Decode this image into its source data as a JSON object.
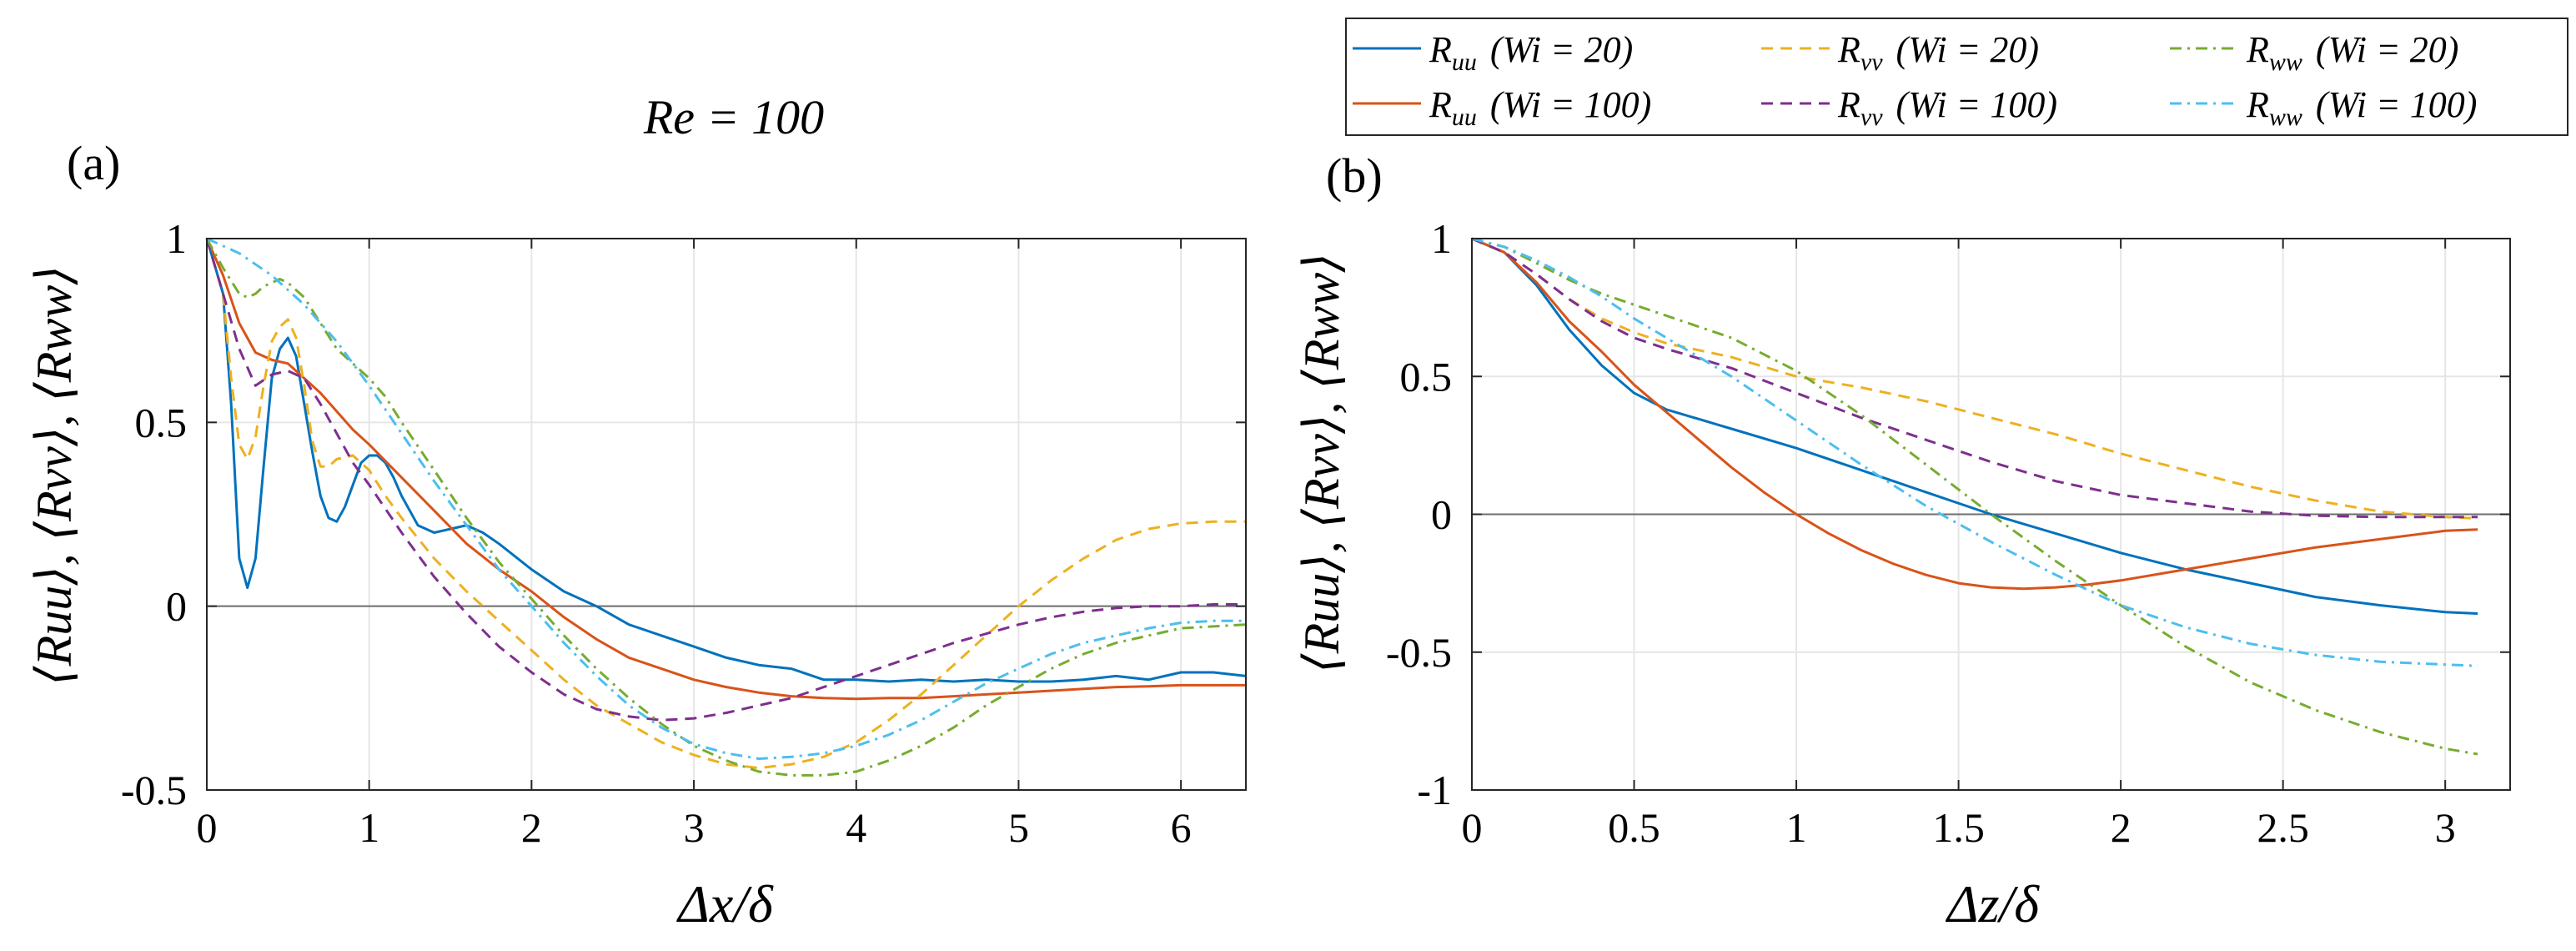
{
  "figure": {
    "title": "Re = 100",
    "series_styles": [
      {
        "key": "uu_wi20",
        "color": "#0072BD",
        "dash": "solid"
      },
      {
        "key": "uu_wi100",
        "color": "#D95319",
        "dash": "solid"
      },
      {
        "key": "vv_wi20",
        "color": "#EDB120",
        "dash": "dashed"
      },
      {
        "key": "vv_wi100",
        "color": "#7E2F8E",
        "dash": "dashed"
      },
      {
        "key": "ww_wi20",
        "color": "#77AC30",
        "dash": "dashdot"
      },
      {
        "key": "ww_wi100",
        "color": "#4DBEEE",
        "dash": "dashdot"
      }
    ]
  },
  "legend": {
    "position": "top-right",
    "entries": [
      {
        "series": "uu_wi20",
        "sym": "R",
        "sub": "uu",
        "label": "(Wi = 20)"
      },
      {
        "series": "vv_wi20",
        "sym": "R",
        "sub": "vv",
        "label": "(Wi = 20)"
      },
      {
        "series": "ww_wi20",
        "sym": "R",
        "sub": "ww",
        "label": "(Wi = 20)"
      },
      {
        "series": "uu_wi100",
        "sym": "R",
        "sub": "uu",
        "label": "(Wi = 100)"
      },
      {
        "series": "vv_wi100",
        "sym": "R",
        "sub": "vv",
        "label": "(Wi = 100)"
      },
      {
        "series": "ww_wi100",
        "sym": "R",
        "sub": "ww",
        "label": "(Wi = 100)"
      }
    ]
  },
  "chart_data": [
    {
      "type": "line",
      "panel_label": "(a)",
      "xlabel": "Δx/δ",
      "ylabel": "⟨Ruu⟩, ⟨Rvv⟩, ⟨Rww⟩",
      "xlim": [
        0,
        6.4
      ],
      "ylim": [
        -0.5,
        1
      ],
      "xticks": [
        0,
        1,
        2,
        3,
        4,
        5,
        6
      ],
      "xticklabels": [
        "0",
        "1",
        "2",
        "3",
        "4",
        "5",
        "6"
      ],
      "yticks": [
        -0.5,
        0,
        0.5,
        1
      ],
      "yticklabels": [
        "-0.5",
        "0",
        "0.5",
        "1"
      ],
      "grid": true,
      "series": [
        {
          "name": "Ruu (Wi = 20)",
          "key": "uu_wi20",
          "x": [
            0,
            0.1,
            0.15,
            0.2,
            0.25,
            0.3,
            0.35,
            0.4,
            0.45,
            0.5,
            0.55,
            0.6,
            0.65,
            0.7,
            0.75,
            0.8,
            0.85,
            0.9,
            0.95,
            1.0,
            1.05,
            1.1,
            1.15,
            1.2,
            1.3,
            1.4,
            1.5,
            1.6,
            1.7,
            1.8,
            2.0,
            2.2,
            2.4,
            2.6,
            2.8,
            3.0,
            3.2,
            3.4,
            3.6,
            3.8,
            4.0,
            4.2,
            4.4,
            4.6,
            4.8,
            5.0,
            5.2,
            5.4,
            5.6,
            5.8,
            6.0,
            6.2,
            6.4
          ],
          "y": [
            1.0,
            0.85,
            0.55,
            0.13,
            0.05,
            0.13,
            0.38,
            0.62,
            0.7,
            0.73,
            0.68,
            0.55,
            0.42,
            0.3,
            0.24,
            0.23,
            0.27,
            0.33,
            0.39,
            0.41,
            0.41,
            0.39,
            0.35,
            0.3,
            0.22,
            0.2,
            0.21,
            0.22,
            0.2,
            0.17,
            0.1,
            0.04,
            0.0,
            -0.05,
            -0.08,
            -0.11,
            -0.14,
            -0.16,
            -0.17,
            -0.2,
            -0.2,
            -0.205,
            -0.2,
            -0.205,
            -0.2,
            -0.205,
            -0.205,
            -0.2,
            -0.19,
            -0.2,
            -0.18,
            -0.18,
            -0.19
          ]
        },
        {
          "name": "Ruu (Wi = 100)",
          "key": "uu_wi100",
          "x": [
            0,
            0.1,
            0.2,
            0.3,
            0.4,
            0.5,
            0.6,
            0.7,
            0.8,
            0.9,
            1.0,
            1.2,
            1.4,
            1.6,
            1.8,
            2.0,
            2.2,
            2.4,
            2.6,
            2.8,
            3.0,
            3.2,
            3.4,
            3.6,
            3.8,
            4.0,
            4.2,
            4.4,
            4.6,
            4.8,
            5.0,
            5.2,
            5.4,
            5.6,
            5.8,
            6.0,
            6.2,
            6.4
          ],
          "y": [
            1.0,
            0.9,
            0.77,
            0.69,
            0.67,
            0.66,
            0.62,
            0.58,
            0.53,
            0.48,
            0.44,
            0.35,
            0.26,
            0.17,
            0.1,
            0.04,
            -0.03,
            -0.09,
            -0.14,
            -0.17,
            -0.2,
            -0.22,
            -0.235,
            -0.245,
            -0.25,
            -0.252,
            -0.25,
            -0.25,
            -0.245,
            -0.24,
            -0.235,
            -0.23,
            -0.225,
            -0.22,
            -0.218,
            -0.215,
            -0.215,
            -0.215
          ]
        },
        {
          "name": "Rvv (Wi = 20)",
          "key": "vv_wi20",
          "x": [
            0,
            0.1,
            0.15,
            0.2,
            0.25,
            0.3,
            0.35,
            0.4,
            0.45,
            0.5,
            0.55,
            0.6,
            0.65,
            0.7,
            0.75,
            0.8,
            0.9,
            1.0,
            1.1,
            1.2,
            1.4,
            1.6,
            1.8,
            2.0,
            2.2,
            2.4,
            2.6,
            2.8,
            3.0,
            3.2,
            3.4,
            3.6,
            3.8,
            4.0,
            4.2,
            4.4,
            4.6,
            4.8,
            5.0,
            5.2,
            5.4,
            5.6,
            5.8,
            6.0,
            6.2,
            6.4
          ],
          "y": [
            1.0,
            0.85,
            0.62,
            0.44,
            0.4,
            0.46,
            0.6,
            0.72,
            0.76,
            0.78,
            0.73,
            0.6,
            0.45,
            0.38,
            0.38,
            0.4,
            0.41,
            0.37,
            0.3,
            0.24,
            0.13,
            0.04,
            -0.04,
            -0.12,
            -0.2,
            -0.27,
            -0.32,
            -0.37,
            -0.405,
            -0.43,
            -0.44,
            -0.43,
            -0.41,
            -0.37,
            -0.31,
            -0.24,
            -0.16,
            -0.08,
            0.0,
            0.07,
            0.13,
            0.18,
            0.21,
            0.225,
            0.23,
            0.23
          ]
        },
        {
          "name": "Rvv (Wi = 100)",
          "key": "vv_wi100",
          "x": [
            0,
            0.1,
            0.2,
            0.3,
            0.4,
            0.5,
            0.6,
            0.7,
            0.8,
            0.9,
            1.0,
            1.2,
            1.4,
            1.6,
            1.8,
            2.0,
            2.2,
            2.4,
            2.6,
            2.8,
            3.0,
            3.2,
            3.4,
            3.6,
            3.8,
            4.0,
            4.2,
            4.4,
            4.6,
            4.8,
            5.0,
            5.2,
            5.4,
            5.6,
            5.8,
            6.0,
            6.2,
            6.4
          ],
          "y": [
            1.0,
            0.85,
            0.7,
            0.6,
            0.63,
            0.64,
            0.62,
            0.55,
            0.47,
            0.39,
            0.33,
            0.2,
            0.08,
            -0.02,
            -0.11,
            -0.18,
            -0.24,
            -0.28,
            -0.3,
            -0.31,
            -0.305,
            -0.29,
            -0.27,
            -0.25,
            -0.22,
            -0.19,
            -0.16,
            -0.13,
            -0.1,
            -0.075,
            -0.05,
            -0.03,
            -0.015,
            -0.005,
            0.0,
            0.0,
            0.005,
            0.005
          ]
        },
        {
          "name": "Rww (Wi = 20)",
          "key": "ww_wi20",
          "x": [
            0,
            0.1,
            0.2,
            0.25,
            0.3,
            0.35,
            0.4,
            0.45,
            0.5,
            0.55,
            0.6,
            0.7,
            0.8,
            0.9,
            1.0,
            1.1,
            1.2,
            1.4,
            1.6,
            1.8,
            2.0,
            2.2,
            2.4,
            2.6,
            2.8,
            3.0,
            3.2,
            3.4,
            3.6,
            3.8,
            4.0,
            4.2,
            4.4,
            4.6,
            4.8,
            5.0,
            5.2,
            5.4,
            5.6,
            5.8,
            6.0,
            6.2,
            6.4
          ],
          "y": [
            1.0,
            0.92,
            0.85,
            0.84,
            0.85,
            0.87,
            0.88,
            0.89,
            0.88,
            0.86,
            0.84,
            0.77,
            0.7,
            0.66,
            0.62,
            0.57,
            0.5,
            0.37,
            0.24,
            0.12,
            0.02,
            -0.08,
            -0.17,
            -0.25,
            -0.32,
            -0.38,
            -0.42,
            -0.45,
            -0.46,
            -0.46,
            -0.45,
            -0.42,
            -0.38,
            -0.33,
            -0.27,
            -0.22,
            -0.17,
            -0.13,
            -0.1,
            -0.08,
            -0.06,
            -0.055,
            -0.05
          ]
        },
        {
          "name": "Rww (Wi = 100)",
          "key": "ww_wi100",
          "x": [
            0,
            0.2,
            0.4,
            0.6,
            0.8,
            1.0,
            1.2,
            1.4,
            1.6,
            1.8,
            2.0,
            2.2,
            2.4,
            2.6,
            2.8,
            3.0,
            3.2,
            3.4,
            3.6,
            3.8,
            4.0,
            4.2,
            4.4,
            4.6,
            4.8,
            5.0,
            5.2,
            5.4,
            5.6,
            5.8,
            6.0,
            6.2,
            6.4
          ],
          "y": [
            1.0,
            0.96,
            0.9,
            0.82,
            0.72,
            0.6,
            0.47,
            0.34,
            0.22,
            0.1,
            0.0,
            -0.1,
            -0.19,
            -0.27,
            -0.33,
            -0.375,
            -0.4,
            -0.415,
            -0.41,
            -0.4,
            -0.38,
            -0.35,
            -0.31,
            -0.26,
            -0.21,
            -0.17,
            -0.13,
            -0.1,
            -0.08,
            -0.06,
            -0.045,
            -0.04,
            -0.04
          ]
        }
      ]
    },
    {
      "type": "line",
      "panel_label": "(b)",
      "xlabel": "Δz/δ",
      "ylabel": "⟨Ruu⟩, ⟨Rvv⟩, ⟨Rww⟩",
      "xlim": [
        0,
        3.2
      ],
      "ylim": [
        -1,
        1
      ],
      "xticks": [
        0,
        0.5,
        1,
        1.5,
        2,
        2.5,
        3
      ],
      "xticklabels": [
        "0",
        "0.5",
        "1",
        "1.5",
        "2",
        "2.5",
        "3"
      ],
      "yticks": [
        -1,
        -0.5,
        0,
        0.5,
        1
      ],
      "yticklabels": [
        "-1",
        "-0.5",
        "0",
        "0.5",
        "1"
      ],
      "grid": true,
      "series": [
        {
          "name": "Ruu (Wi = 20)",
          "key": "uu_wi20",
          "x": [
            0,
            0.1,
            0.2,
            0.3,
            0.4,
            0.5,
            0.6,
            0.8,
            1.0,
            1.2,
            1.4,
            1.6,
            1.8,
            2.0,
            2.2,
            2.4,
            2.6,
            2.8,
            3.0,
            3.1
          ],
          "y": [
            1.0,
            0.95,
            0.83,
            0.67,
            0.54,
            0.44,
            0.38,
            0.31,
            0.24,
            0.16,
            0.08,
            0.0,
            -0.07,
            -0.14,
            -0.2,
            -0.25,
            -0.3,
            -0.33,
            -0.355,
            -0.36
          ]
        },
        {
          "name": "Ruu (Wi = 100)",
          "key": "uu_wi100",
          "x": [
            0,
            0.1,
            0.2,
            0.3,
            0.4,
            0.5,
            0.6,
            0.7,
            0.8,
            0.9,
            1.0,
            1.1,
            1.2,
            1.3,
            1.4,
            1.5,
            1.6,
            1.7,
            1.8,
            1.9,
            2.0,
            2.2,
            2.4,
            2.6,
            2.8,
            3.0,
            3.1
          ],
          "y": [
            1.0,
            0.95,
            0.84,
            0.7,
            0.59,
            0.47,
            0.37,
            0.27,
            0.17,
            0.08,
            0.0,
            -0.07,
            -0.13,
            -0.18,
            -0.22,
            -0.25,
            -0.265,
            -0.27,
            -0.265,
            -0.255,
            -0.24,
            -0.2,
            -0.16,
            -0.12,
            -0.09,
            -0.06,
            -0.055
          ]
        },
        {
          "name": "Rvv (Wi = 20)",
          "key": "vv_wi20",
          "x": [
            0,
            0.1,
            0.2,
            0.3,
            0.4,
            0.5,
            0.6,
            0.8,
            1.0,
            1.2,
            1.4,
            1.6,
            1.8,
            2.0,
            2.2,
            2.4,
            2.6,
            2.8,
            3.0,
            3.1
          ],
          "y": [
            1.0,
            0.95,
            0.87,
            0.78,
            0.71,
            0.66,
            0.62,
            0.57,
            0.5,
            0.46,
            0.41,
            0.35,
            0.29,
            0.22,
            0.16,
            0.1,
            0.05,
            0.01,
            -0.01,
            -0.015
          ]
        },
        {
          "name": "Rvv (Wi = 100)",
          "key": "vv_wi100",
          "x": [
            0,
            0.1,
            0.2,
            0.3,
            0.4,
            0.5,
            0.6,
            0.8,
            1.0,
            1.2,
            1.4,
            1.6,
            1.8,
            2.0,
            2.2,
            2.4,
            2.6,
            2.8,
            3.0,
            3.1
          ],
          "y": [
            1.0,
            0.95,
            0.87,
            0.78,
            0.7,
            0.64,
            0.6,
            0.53,
            0.44,
            0.35,
            0.27,
            0.19,
            0.12,
            0.07,
            0.04,
            0.01,
            -0.005,
            -0.01,
            -0.01,
            -0.01
          ]
        },
        {
          "name": "Rww (Wi = 20)",
          "key": "ww_wi20",
          "x": [
            0,
            0.1,
            0.2,
            0.3,
            0.4,
            0.5,
            0.6,
            0.8,
            1.0,
            1.2,
            1.4,
            1.6,
            1.8,
            2.0,
            2.2,
            2.4,
            2.6,
            2.8,
            3.0,
            3.1
          ],
          "y": [
            1.0,
            0.97,
            0.91,
            0.85,
            0.8,
            0.76,
            0.72,
            0.64,
            0.52,
            0.36,
            0.18,
            0.0,
            -0.17,
            -0.33,
            -0.48,
            -0.61,
            -0.71,
            -0.79,
            -0.85,
            -0.87
          ]
        },
        {
          "name": "Rww (Wi = 100)",
          "key": "ww_wi100",
          "x": [
            0,
            0.1,
            0.2,
            0.3,
            0.4,
            0.5,
            0.6,
            0.8,
            1.0,
            1.2,
            1.4,
            1.6,
            1.8,
            2.0,
            2.2,
            2.4,
            2.6,
            2.8,
            3.0,
            3.1
          ],
          "y": [
            1.0,
            0.97,
            0.92,
            0.86,
            0.79,
            0.71,
            0.64,
            0.5,
            0.34,
            0.18,
            0.03,
            -0.1,
            -0.22,
            -0.33,
            -0.41,
            -0.47,
            -0.51,
            -0.535,
            -0.545,
            -0.55
          ]
        }
      ]
    }
  ]
}
